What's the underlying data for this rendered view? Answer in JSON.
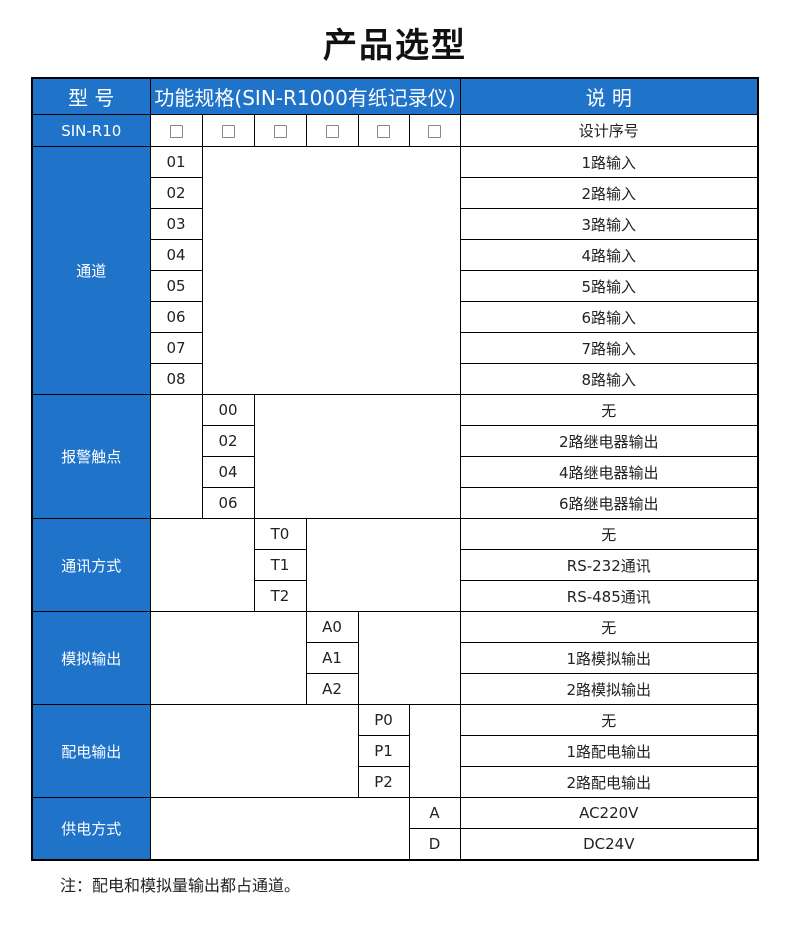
{
  "title": "产品选型",
  "header": {
    "model": "型 号",
    "spec": "功能规格(SIN-R1000有纸记录仪)",
    "desc": "说 明"
  },
  "model_row": {
    "model": "SIN-R10",
    "checkbox_count": 6,
    "desc": "设计序号"
  },
  "groups": [
    {
      "label": "通道",
      "options": [
        {
          "code": "01",
          "desc": "1路输入"
        },
        {
          "code": "02",
          "desc": "2路输入"
        },
        {
          "code": "03",
          "desc": "3路输入"
        },
        {
          "code": "04",
          "desc": "4路输入"
        },
        {
          "code": "05",
          "desc": "5路输入"
        },
        {
          "code": "06",
          "desc": "6路输入"
        },
        {
          "code": "07",
          "desc": "7路输入"
        },
        {
          "code": "08",
          "desc": "8路输入"
        }
      ]
    },
    {
      "label": "报警触点",
      "options": [
        {
          "code": "00",
          "desc": "无"
        },
        {
          "code": "02",
          "desc": "2路继电器输出"
        },
        {
          "code": "04",
          "desc": "4路继电器输出"
        },
        {
          "code": "06",
          "desc": "6路继电器输出"
        }
      ]
    },
    {
      "label": "通讯方式",
      "options": [
        {
          "code": "T0",
          "desc": "无"
        },
        {
          "code": "T1",
          "desc": "RS-232通讯"
        },
        {
          "code": "T2",
          "desc": "RS-485通讯"
        }
      ]
    },
    {
      "label": "模拟输出",
      "options": [
        {
          "code": "A0",
          "desc": "无"
        },
        {
          "code": "A1",
          "desc": "1路模拟输出"
        },
        {
          "code": "A2",
          "desc": "2路模拟输出"
        }
      ]
    },
    {
      "label": "配电输出",
      "options": [
        {
          "code": "P0",
          "desc": "无"
        },
        {
          "code": "P1",
          "desc": "1路配电输出"
        },
        {
          "code": "P2",
          "desc": "2路配电输出"
        }
      ]
    },
    {
      "label": "供电方式",
      "options": [
        {
          "code": "A",
          "desc": "AC220V"
        },
        {
          "code": "D",
          "desc": "DC24V"
        }
      ]
    }
  ],
  "note": "注：配电和模拟量输出都占通道。",
  "colors": {
    "header_blue": "#1f73c9"
  }
}
